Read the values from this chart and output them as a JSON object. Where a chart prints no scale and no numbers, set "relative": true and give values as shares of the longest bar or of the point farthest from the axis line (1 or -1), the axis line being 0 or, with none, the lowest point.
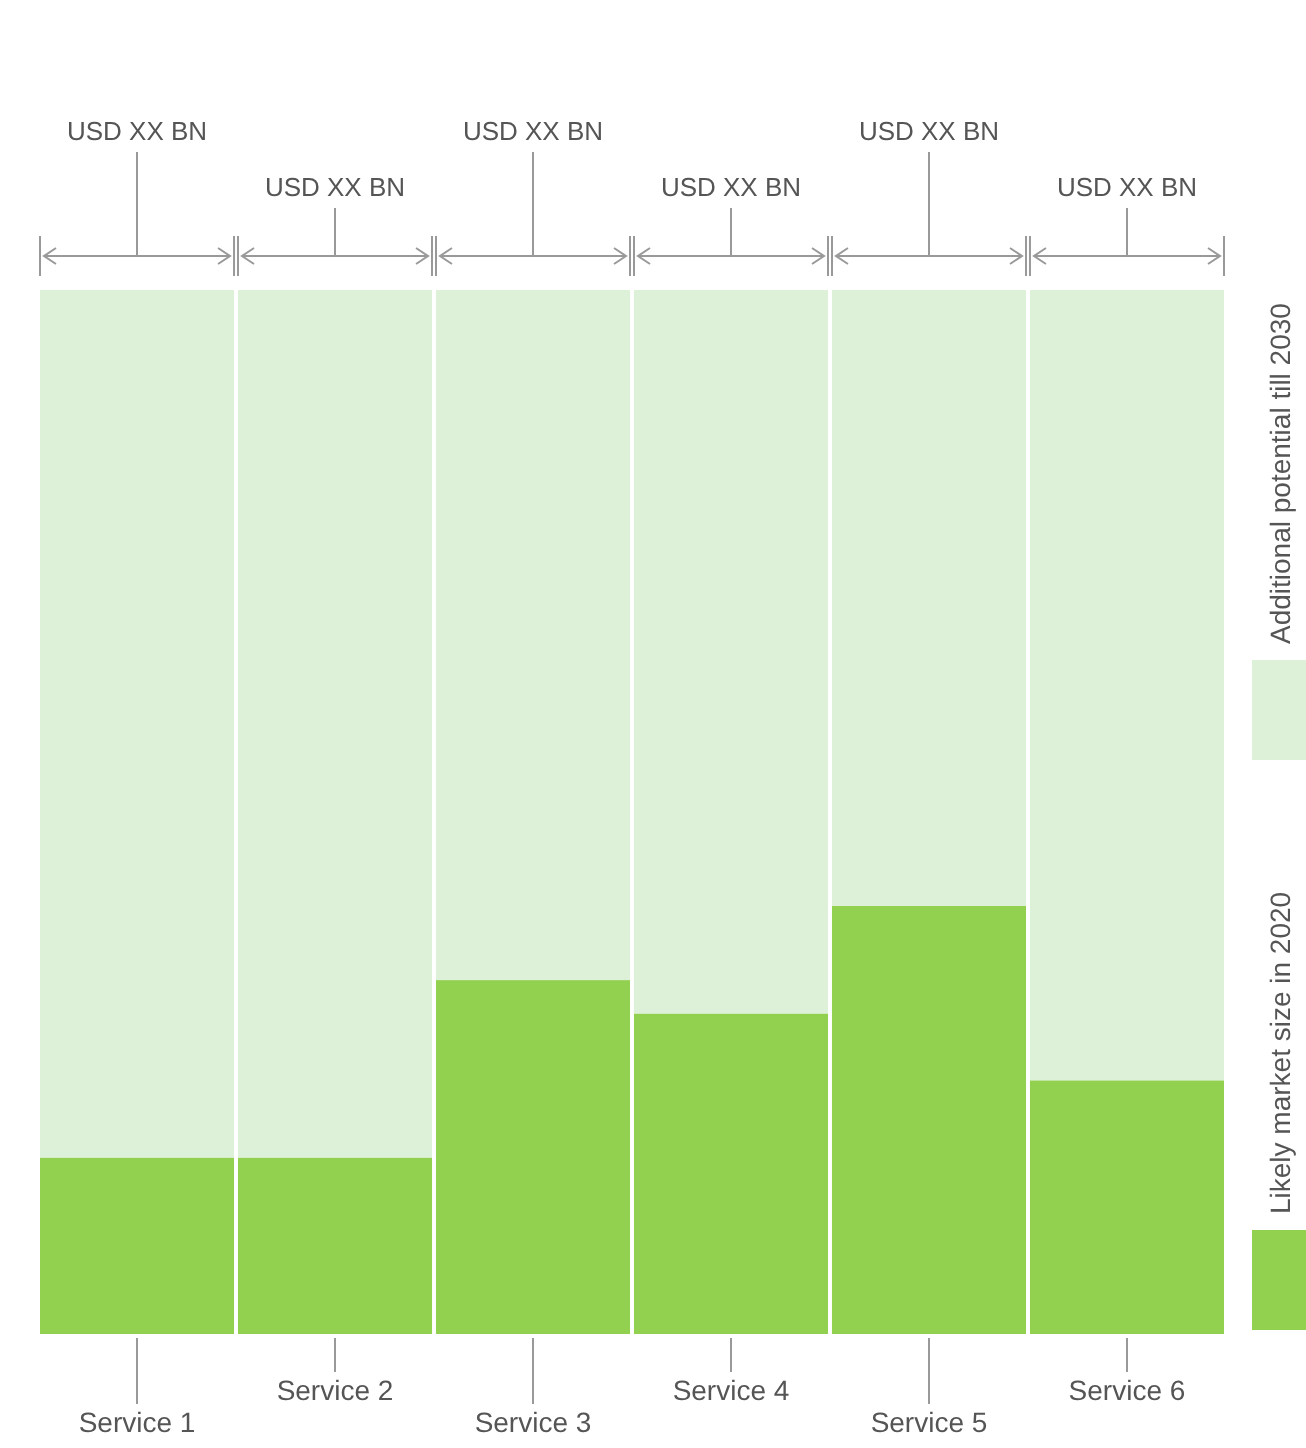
{
  "chart_data": {
    "type": "bar",
    "stacked": true,
    "relative": true,
    "legend": "right",
    "categories": [
      "Service 1",
      "Service 2",
      "Service 3",
      "Service 4",
      "Service 5",
      "Service 6"
    ],
    "series": [
      {
        "name": "Likely market size in 2020",
        "color": "#92d050",
        "values": [
          0.169,
          0.169,
          0.339,
          0.307,
          0.41,
          0.243
        ]
      },
      {
        "name": "Additional potential till 2030",
        "color": "#ddf0d8",
        "values": [
          0.831,
          0.831,
          0.661,
          0.693,
          0.59,
          0.757
        ]
      }
    ],
    "annotations": [
      {
        "text": "USD XX  BN",
        "x": "Service 1"
      },
      {
        "text": "USD XX  BN",
        "x": "Service 2"
      },
      {
        "text": "USD XX  BN",
        "x": "Service 3"
      },
      {
        "text": "USD XX  BN",
        "x": "Service 4"
      },
      {
        "text": "USD XX  BN",
        "x": "Service 5"
      },
      {
        "text": "USD XX  BN",
        "x": "Service 6"
      }
    ]
  }
}
